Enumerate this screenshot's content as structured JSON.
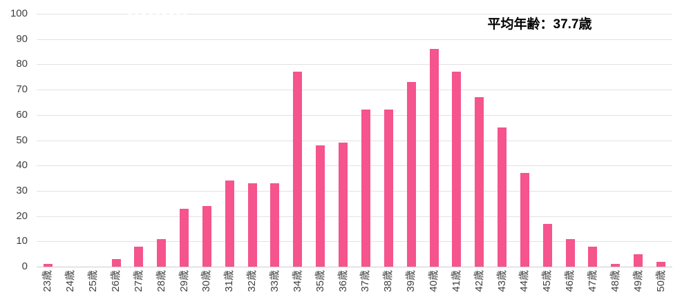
{
  "chart_data": {
    "type": "bar",
    "title": "",
    "annotation": "平均年齢：37.7歳",
    "categories": [
      "23歳",
      "24歳",
      "25歳",
      "26歳",
      "27歳",
      "28歳",
      "29歳",
      "30歳",
      "31歳",
      "32歳",
      "33歳",
      "34歳",
      "35歳",
      "36歳",
      "37歳",
      "38歳",
      "39歳",
      "40歳",
      "41歳",
      "42歳",
      "43歳",
      "44歳",
      "45歳",
      "46歳",
      "47歳",
      "48歳",
      "49歳",
      "50歳"
    ],
    "values": [
      1,
      0,
      0,
      3,
      8,
      11,
      23,
      24,
      34,
      33,
      33,
      77,
      48,
      49,
      62,
      62,
      73,
      86,
      77,
      67,
      55,
      37,
      17,
      11,
      8,
      1,
      5,
      2
    ],
    "xlabel": "",
    "ylabel": "",
    "ylim": [
      0,
      100
    ],
    "yticks": [
      0,
      10,
      20,
      30,
      40,
      50,
      60,
      70,
      80,
      90,
      100
    ],
    "grid": true,
    "legend": "none",
    "bar_color": "#F5548C",
    "gridline_color": "#E2E2E2",
    "axis_line_color": "#CDCDCD",
    "tick_label_color": "#3F3F3F",
    "annotation_color": "#000000"
  }
}
